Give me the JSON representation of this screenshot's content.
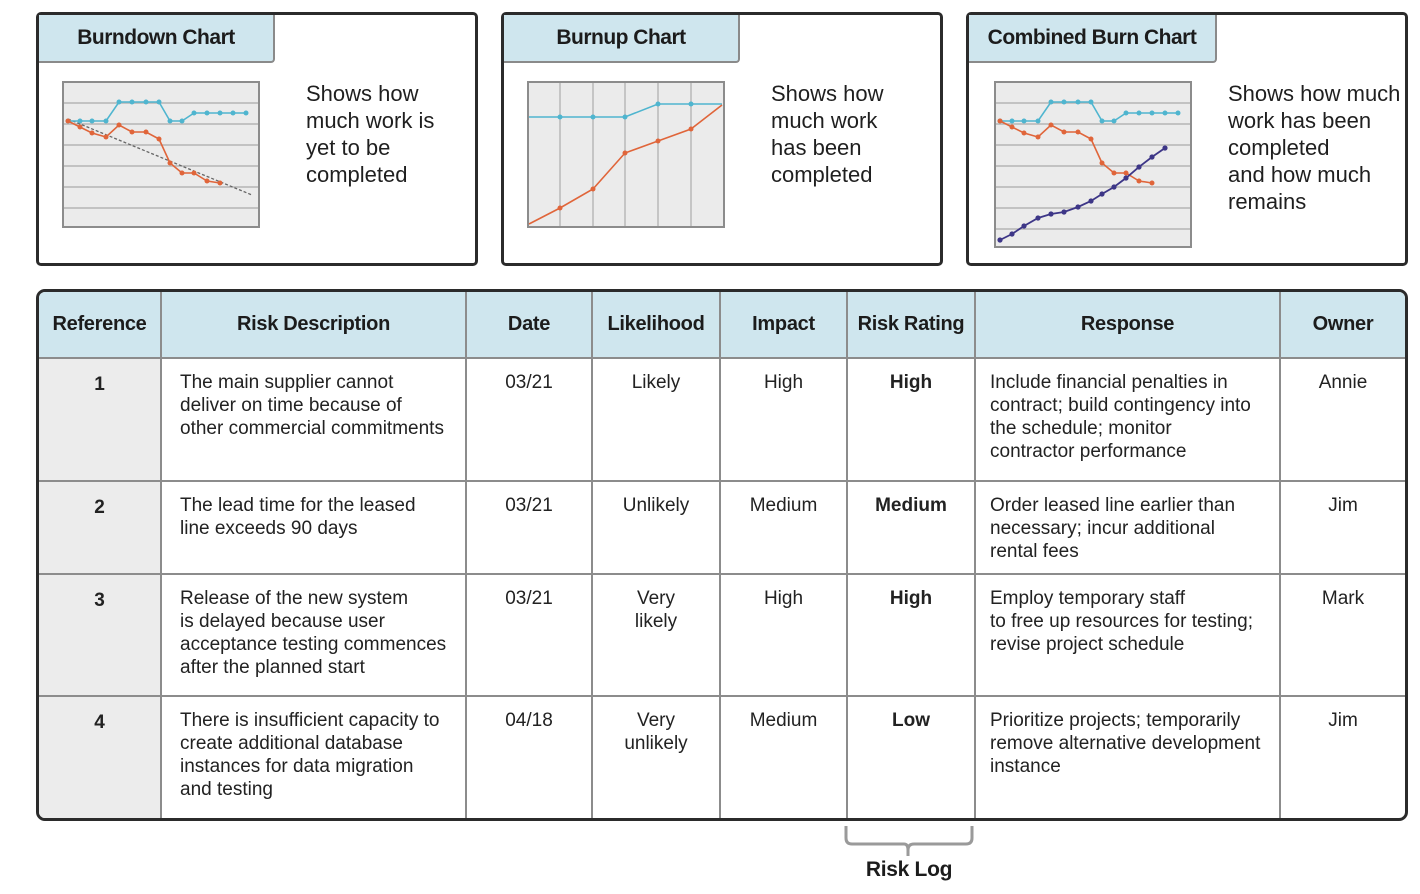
{
  "panels": [
    {
      "title": "Burndown Chart",
      "description": "Shows how\nmuch work is\nyet to be\ncompleted",
      "icon": "burndown-chart-icon"
    },
    {
      "title": "Burnup Chart",
      "description": "Shows how\nmuch work\nhas been\ncompleted",
      "icon": "burnup-chart-icon"
    },
    {
      "title": "Combined Burn Chart",
      "description": "Shows how much\nwork has been\ncompleted\nand how much\nremains",
      "icon": "combined-burn-chart-icon"
    }
  ],
  "colors": {
    "tab_fill": "#cfe6ee",
    "reference_fill": "#ececec",
    "chart_fill": "#ebebeb",
    "line_teal": "#4fb5cf",
    "line_orange": "#e0653a",
    "line_navy": "#3d3687",
    "ideal_line": "#666666"
  },
  "table": {
    "headers": [
      "Reference",
      "Risk Description",
      "Date",
      "Likelihood",
      "Impact",
      "Risk Rating",
      "Response",
      "Owner"
    ],
    "rows": [
      {
        "reference": "1",
        "description": [
          "The main supplier cannot",
          "deliver on time because of",
          "other commercial commitments"
        ],
        "date": "03/21",
        "likelihood": [
          "Likely"
        ],
        "impact": "High",
        "rating": "High",
        "response": [
          "Include financial penalties in",
          "contract; build contingency into",
          "the schedule; monitor",
          "contractor performance"
        ],
        "owner": "Annie"
      },
      {
        "reference": "2",
        "description": [
          "The lead time for the leased",
          "line exceeds 90 days"
        ],
        "date": "03/21",
        "likelihood": [
          "Unlikely"
        ],
        "impact": "Medium",
        "rating": "Medium",
        "response": [
          "Order leased line earlier than",
          "necessary; incur additional",
          "rental fees"
        ],
        "owner": "Jim"
      },
      {
        "reference": "3",
        "description": [
          "Release of the new system",
          "is delayed because user",
          "acceptance testing commences",
          "after the planned start"
        ],
        "date": "03/21",
        "likelihood": [
          "Very",
          "likely"
        ],
        "impact": "High",
        "rating": "High",
        "response": [
          "Employ temporary staff",
          "to free up resources for testing;",
          "revise project schedule"
        ],
        "owner": "Mark"
      },
      {
        "reference": "4",
        "description": [
          "There is insufficient capacity to",
          "create additional database",
          "instances for data migration",
          "and testing"
        ],
        "date": "04/18",
        "likelihood": [
          "Very",
          "unlikely"
        ],
        "impact": "Medium",
        "rating": "Low",
        "response": [
          "Prioritize projects; temporarily",
          "remove alternative development",
          "instance"
        ],
        "owner": "Jim"
      }
    ]
  },
  "footer": {
    "label": "Risk Log"
  }
}
